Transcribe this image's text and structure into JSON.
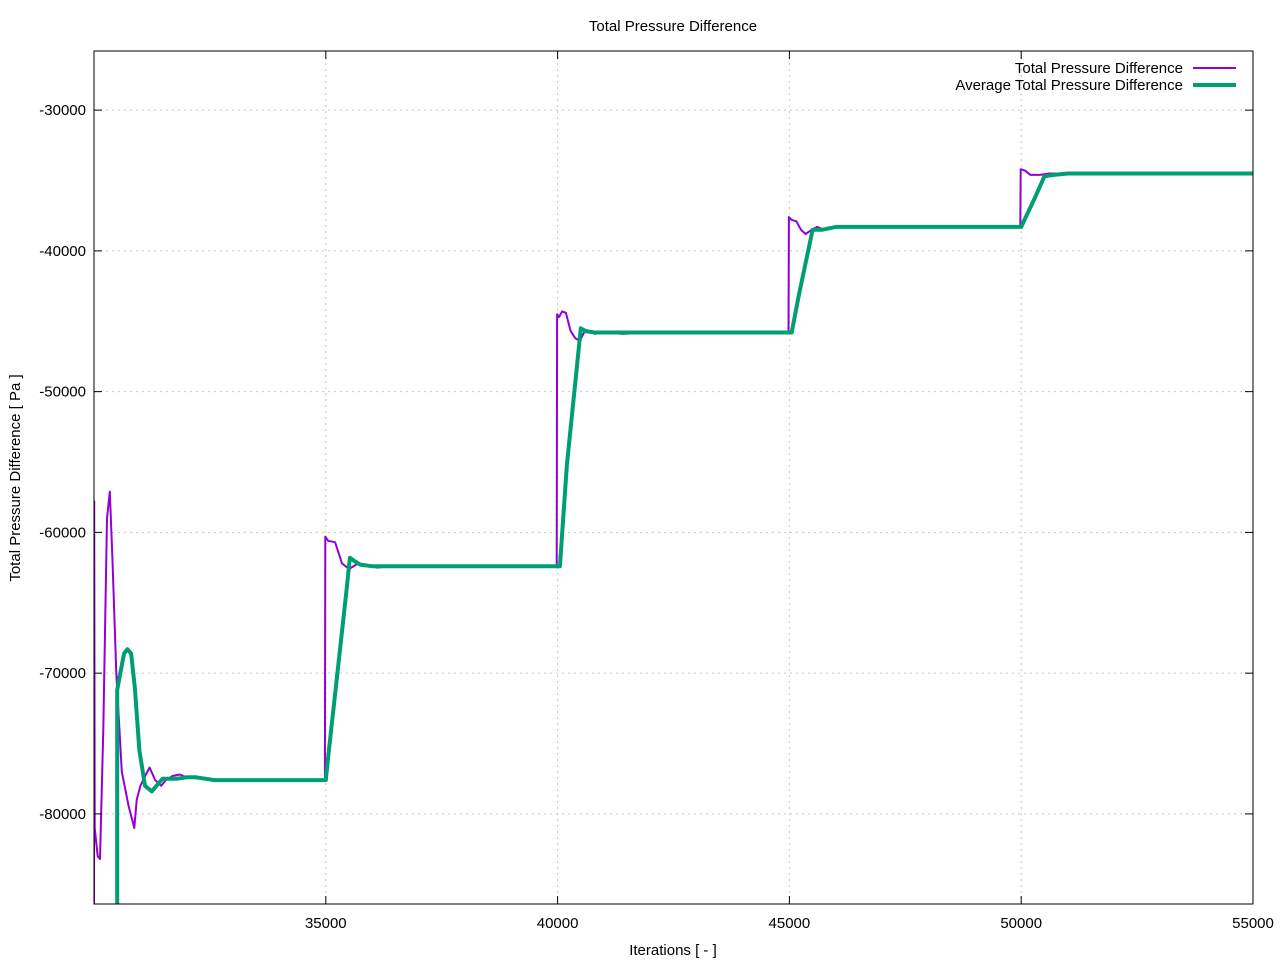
{
  "chart_data": {
    "type": "line",
    "title": "Total Pressure Difference",
    "xlabel": "Iterations [ - ]",
    "ylabel": "Total Pressure Difference [ Pa ]",
    "xlim": [
      30000,
      55000
    ],
    "ylim": [
      -86400,
      -25800
    ],
    "xticks": [
      35000,
      40000,
      45000,
      50000,
      55000
    ],
    "yticks": [
      -30000,
      -40000,
      -50000,
      -60000,
      -70000,
      -80000
    ],
    "grid": true,
    "legend_position": "top-right",
    "series": [
      {
        "name": "Total Pressure Difference",
        "color": "#9400d3",
        "width": 2,
        "points": [
          [
            30000,
            -86400
          ],
          [
            30005,
            -57800
          ],
          [
            30015,
            -81000
          ],
          [
            30080,
            -83000
          ],
          [
            30130,
            -83200
          ],
          [
            30200,
            -74000
          ],
          [
            30280,
            -59000
          ],
          [
            30340,
            -57100
          ],
          [
            30400,
            -62000
          ],
          [
            30480,
            -70000
          ],
          [
            30600,
            -77000
          ],
          [
            30750,
            -79500
          ],
          [
            30870,
            -81000
          ],
          [
            30920,
            -79000
          ],
          [
            31000,
            -78000
          ],
          [
            31120,
            -77200
          ],
          [
            31200,
            -76700
          ],
          [
            31320,
            -77600
          ],
          [
            31450,
            -78000
          ],
          [
            31550,
            -77600
          ],
          [
            31700,
            -77300
          ],
          [
            31850,
            -77200
          ],
          [
            32000,
            -77400
          ],
          [
            32300,
            -77500
          ],
          [
            32600,
            -77600
          ],
          [
            33000,
            -77600
          ],
          [
            34000,
            -77600
          ],
          [
            34980,
            -77600
          ],
          [
            34990,
            -60300
          ],
          [
            35050,
            -60600
          ],
          [
            35200,
            -60700
          ],
          [
            35350,
            -62200
          ],
          [
            35500,
            -62600
          ],
          [
            35700,
            -62200
          ],
          [
            35900,
            -62300
          ],
          [
            36100,
            -62500
          ],
          [
            36400,
            -62400
          ],
          [
            37000,
            -62400
          ],
          [
            38000,
            -62400
          ],
          [
            39980,
            -62400
          ],
          [
            39990,
            -44500
          ],
          [
            40030,
            -44700
          ],
          [
            40100,
            -44300
          ],
          [
            40180,
            -44400
          ],
          [
            40280,
            -45700
          ],
          [
            40380,
            -46200
          ],
          [
            40480,
            -46400
          ],
          [
            40600,
            -45600
          ],
          [
            40800,
            -45900
          ],
          [
            41000,
            -45800
          ],
          [
            41400,
            -45900
          ],
          [
            42000,
            -45800
          ],
          [
            43000,
            -45800
          ],
          [
            44980,
            -45800
          ],
          [
            44990,
            -37600
          ],
          [
            45050,
            -37800
          ],
          [
            45150,
            -37900
          ],
          [
            45250,
            -38500
          ],
          [
            45350,
            -38800
          ],
          [
            45480,
            -38500
          ],
          [
            45600,
            -38300
          ],
          [
            45750,
            -38500
          ],
          [
            46000,
            -38300
          ],
          [
            46500,
            -38300
          ],
          [
            48000,
            -38300
          ],
          [
            49980,
            -38300
          ],
          [
            49990,
            -34200
          ],
          [
            50080,
            -34300
          ],
          [
            50200,
            -34600
          ],
          [
            50400,
            -34600
          ],
          [
            50600,
            -34500
          ],
          [
            51000,
            -34500
          ],
          [
            53000,
            -34500
          ],
          [
            55000,
            -34500
          ]
        ]
      },
      {
        "name": "Average Total Pressure Difference",
        "color": "#009e73",
        "width": 4,
        "points": [
          [
            30500,
            -86400
          ],
          [
            30500,
            -71200
          ],
          [
            30550,
            -70300
          ],
          [
            30650,
            -68600
          ],
          [
            30720,
            -68300
          ],
          [
            30800,
            -68600
          ],
          [
            30880,
            -71000
          ],
          [
            30980,
            -75500
          ],
          [
            31100,
            -78000
          ],
          [
            31250,
            -78400
          ],
          [
            31400,
            -77800
          ],
          [
            31480,
            -77500
          ],
          [
            31600,
            -77500
          ],
          [
            31800,
            -77500
          ],
          [
            32000,
            -77400
          ],
          [
            32200,
            -77400
          ],
          [
            32600,
            -77600
          ],
          [
            33000,
            -77600
          ],
          [
            34000,
            -77600
          ],
          [
            35000,
            -77600
          ],
          [
            35050,
            -76000
          ],
          [
            35250,
            -70000
          ],
          [
            35450,
            -64000
          ],
          [
            35520,
            -61800
          ],
          [
            35600,
            -62000
          ],
          [
            35750,
            -62300
          ],
          [
            36000,
            -62400
          ],
          [
            36500,
            -62400
          ],
          [
            37000,
            -62400
          ],
          [
            38000,
            -62400
          ],
          [
            39000,
            -62400
          ],
          [
            40050,
            -62400
          ],
          [
            40200,
            -55200
          ],
          [
            40500,
            -45500
          ],
          [
            40600,
            -45700
          ],
          [
            40800,
            -45800
          ],
          [
            41000,
            -45800
          ],
          [
            42000,
            -45800
          ],
          [
            43000,
            -45800
          ],
          [
            44000,
            -45800
          ],
          [
            45050,
            -45800
          ],
          [
            45200,
            -43200
          ],
          [
            45500,
            -38500
          ],
          [
            45700,
            -38500
          ],
          [
            46000,
            -38300
          ],
          [
            47000,
            -38300
          ],
          [
            48000,
            -38300
          ],
          [
            49000,
            -38300
          ],
          [
            50000,
            -38300
          ],
          [
            50100,
            -37600
          ],
          [
            50300,
            -36200
          ],
          [
            50500,
            -34700
          ],
          [
            50700,
            -34600
          ],
          [
            51000,
            -34500
          ],
          [
            52000,
            -34500
          ],
          [
            53000,
            -34500
          ],
          [
            55000,
            -34500
          ]
        ]
      }
    ]
  }
}
